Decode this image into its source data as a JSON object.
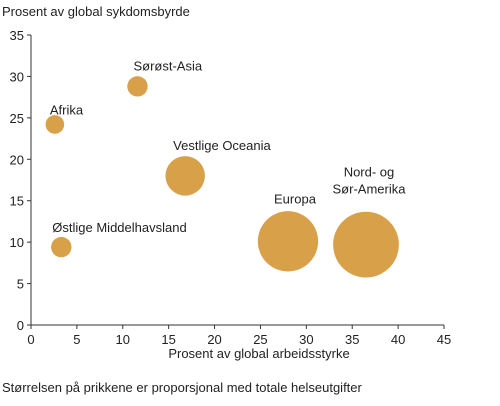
{
  "chart_data": {
    "type": "scatter",
    "title": "",
    "ylabel": "Prosent av global sykdomsbyrde",
    "xlabel": "Prosent av global arbeidsstyrke",
    "footnote": "Størrelsen på prikkene er proporsjonal med totale helseutgifter",
    "xlim": [
      0,
      45
    ],
    "ylim": [
      0,
      35
    ],
    "xticks": [
      "0",
      "5",
      "10",
      "15",
      "20",
      "25",
      "30",
      "35",
      "40",
      "45"
    ],
    "yticks": [
      "0",
      "5",
      "10",
      "15",
      "20",
      "25",
      "30",
      "35"
    ],
    "grid": false,
    "bubble_color": "#d9a04a",
    "points": [
      {
        "label": "Afrika",
        "x": 2.6,
        "y": 24.2,
        "size": 1.0
      },
      {
        "label": "Sørøst-Asia",
        "x": 11.6,
        "y": 28.8,
        "size": 1.2
      },
      {
        "label": "Vestlige Oceania",
        "x": 16.8,
        "y": 18.0,
        "size": 4.5
      },
      {
        "label": "Østlige Middelhavsland",
        "x": 3.3,
        "y": 9.4,
        "size": 1.2
      },
      {
        "label": "Europa",
        "x": 28.0,
        "y": 10.1,
        "size": 10.5
      },
      {
        "label": "Nord- og\nSør-Amerika",
        "x": 36.5,
        "y": 9.7,
        "size": 12.5
      }
    ]
  }
}
